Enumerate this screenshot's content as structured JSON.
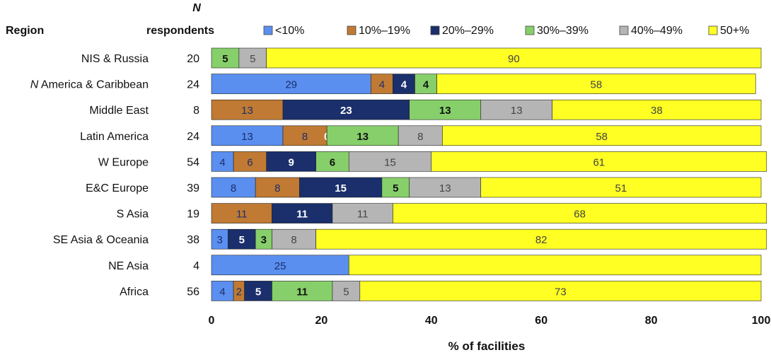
{
  "chart_data": {
    "type": "bar",
    "orientation": "horizontal",
    "stacked": true,
    "header_region": "Region",
    "header_n_top": "N",
    "header_n_bottom": "respondents",
    "categories": [
      "NIS & Russia",
      "N America & Caribbean",
      "Middle East",
      "Latin America",
      "W Europe",
      "E&C Europe",
      "S Asia",
      "SE Asia & Oceania",
      "NE Asia",
      "Africa"
    ],
    "n_respondents": [
      "20",
      "24",
      "8",
      "24",
      "54",
      "39",
      "19",
      "38",
      "4",
      "56"
    ],
    "series": [
      {
        "name": "<10%",
        "color": "#5a8ff0",
        "values": [
          0,
          29,
          0,
          13,
          4,
          8,
          0,
          3,
          25,
          4
        ],
        "labels": [
          "",
          "29",
          "",
          "13",
          "4",
          "8",
          "",
          "3",
          "25",
          "4"
        ]
      },
      {
        "name": "10%–19%",
        "color": "#c07a33",
        "values": [
          0,
          4,
          13,
          8,
          6,
          8,
          11,
          0,
          0,
          2
        ],
        "labels": [
          "",
          "4",
          "13",
          "8",
          "6",
          "8",
          "11",
          "",
          "",
          "2"
        ]
      },
      {
        "name": "20%–29%",
        "color": "#1a2f6b",
        "values": [
          0,
          4,
          23,
          0,
          9,
          15,
          11,
          5,
          0,
          5
        ],
        "labels": [
          "",
          "4",
          "23",
          "0",
          "9",
          "15",
          "11",
          "5",
          "",
          "5"
        ]
      },
      {
        "name": "30%–39%",
        "color": "#86cf6a",
        "values": [
          5,
          4,
          13,
          13,
          6,
          5,
          0,
          3,
          0,
          11
        ],
        "labels": [
          "5",
          "4",
          "13",
          "13",
          "6",
          "5",
          "",
          "3",
          "",
          "11"
        ]
      },
      {
        "name": "40%–49%",
        "color": "#b5b5b5",
        "values": [
          5,
          0,
          13,
          8,
          15,
          13,
          11,
          8,
          0,
          5
        ],
        "labels": [
          "5",
          "",
          "13",
          "8",
          "15",
          "13",
          "11",
          "8",
          "",
          "5"
        ]
      },
      {
        "name": "50+%",
        "color": "#ffff24",
        "values": [
          90,
          58,
          38,
          58,
          61,
          51,
          68,
          82,
          75,
          73
        ],
        "labels": [
          "90",
          "58",
          "38",
          "58",
          "61",
          "51",
          "68",
          "82",
          "",
          "73"
        ]
      }
    ],
    "x_ticks": [
      "0",
      "20",
      "40",
      "60",
      "80",
      "100"
    ],
    "xlim": [
      0,
      100
    ],
    "xlabel": "% of facilities",
    "legend_position": "top",
    "grid": false
  }
}
